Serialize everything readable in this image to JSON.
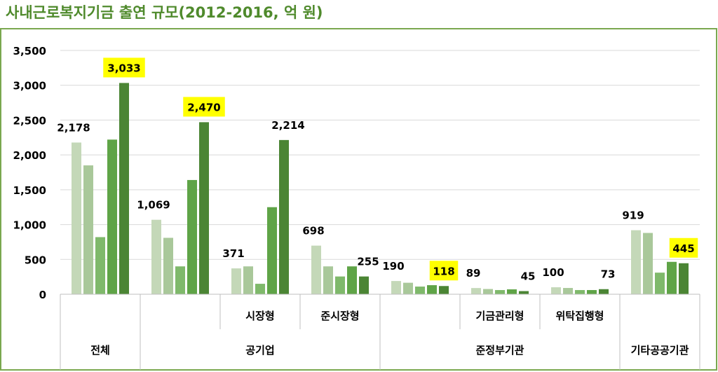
{
  "title": "사내근로복지기금 출연 규모(2012-2016, 억 원)",
  "colors": {
    "title": "#4f8a2c",
    "frame": "#7aa84f",
    "grid": "#d9d9d9",
    "axis": "#bfbfbf",
    "highlight": "#ffff00",
    "series": [
      "#c4d8b8",
      "#a9c89a",
      "#7fb96b",
      "#5fa447",
      "#4b8534"
    ]
  },
  "chart_data": {
    "type": "bar",
    "title": "사내근로복지기금 출연 규모(2012-2016, 억 원)",
    "ylim": [
      0,
      3500
    ],
    "yticks": [
      "0",
      "500",
      "1,000",
      "1,500",
      "2,000",
      "2,500",
      "3,000",
      "3,500"
    ],
    "grid": true,
    "legend": "none",
    "categories": [
      {
        "sub": "",
        "group": "전체",
        "values": [
          2178,
          1850,
          820,
          2220,
          3033
        ]
      },
      {
        "sub": "",
        "group": "공기업",
        "values": [
          1069,
          810,
          400,
          1640,
          2470
        ]
      },
      {
        "sub": "시장형",
        "group": "공기업",
        "values": [
          371,
          400,
          150,
          1250,
          2214
        ]
      },
      {
        "sub": "준시장형",
        "group": "공기업",
        "values": [
          698,
          400,
          255,
          400,
          255
        ]
      },
      {
        "sub": "",
        "group": "준정부기관",
        "values": [
          190,
          165,
          110,
          130,
          118
        ]
      },
      {
        "sub": "기금관리형",
        "group": "준정부기관",
        "values": [
          89,
          75,
          60,
          70,
          45
        ]
      },
      {
        "sub": "위탁집행형",
        "group": "준정부기관",
        "values": [
          100,
          90,
          60,
          60,
          73
        ]
      },
      {
        "sub": "",
        "group": "기타공공기관",
        "values": [
          919,
          880,
          310,
          465,
          445
        ]
      }
    ],
    "groups": [
      "전체",
      "공기업",
      "준정부기관",
      "기타공공기관"
    ],
    "data_labels": [
      {
        "category": 0,
        "series": 0,
        "text": "2,178",
        "highlight": false
      },
      {
        "category": 0,
        "series": 4,
        "text": "3,033",
        "highlight": true
      },
      {
        "category": 1,
        "series": 0,
        "text": "1,069",
        "highlight": false
      },
      {
        "category": 1,
        "series": 4,
        "text": "2,470",
        "highlight": true
      },
      {
        "category": 2,
        "series": 0,
        "text": "371",
        "highlight": false
      },
      {
        "category": 2,
        "series": 4,
        "text": "2,214",
        "highlight": false
      },
      {
        "category": 3,
        "series": 0,
        "text": "698",
        "highlight": false
      },
      {
        "category": 3,
        "series": 4,
        "text": "255",
        "highlight": false
      },
      {
        "category": 4,
        "series": 0,
        "text": "190",
        "highlight": false
      },
      {
        "category": 4,
        "series": 4,
        "text": "118",
        "highlight": true
      },
      {
        "category": 5,
        "series": 0,
        "text": "89",
        "highlight": false
      },
      {
        "category": 5,
        "series": 4,
        "text": "45",
        "highlight": false
      },
      {
        "category": 6,
        "series": 0,
        "text": "100",
        "highlight": false
      },
      {
        "category": 6,
        "series": 4,
        "text": "73",
        "highlight": false
      },
      {
        "category": 7,
        "series": 0,
        "text": "919",
        "highlight": false
      },
      {
        "category": 7,
        "series": 4,
        "text": "445",
        "highlight": true
      }
    ]
  }
}
